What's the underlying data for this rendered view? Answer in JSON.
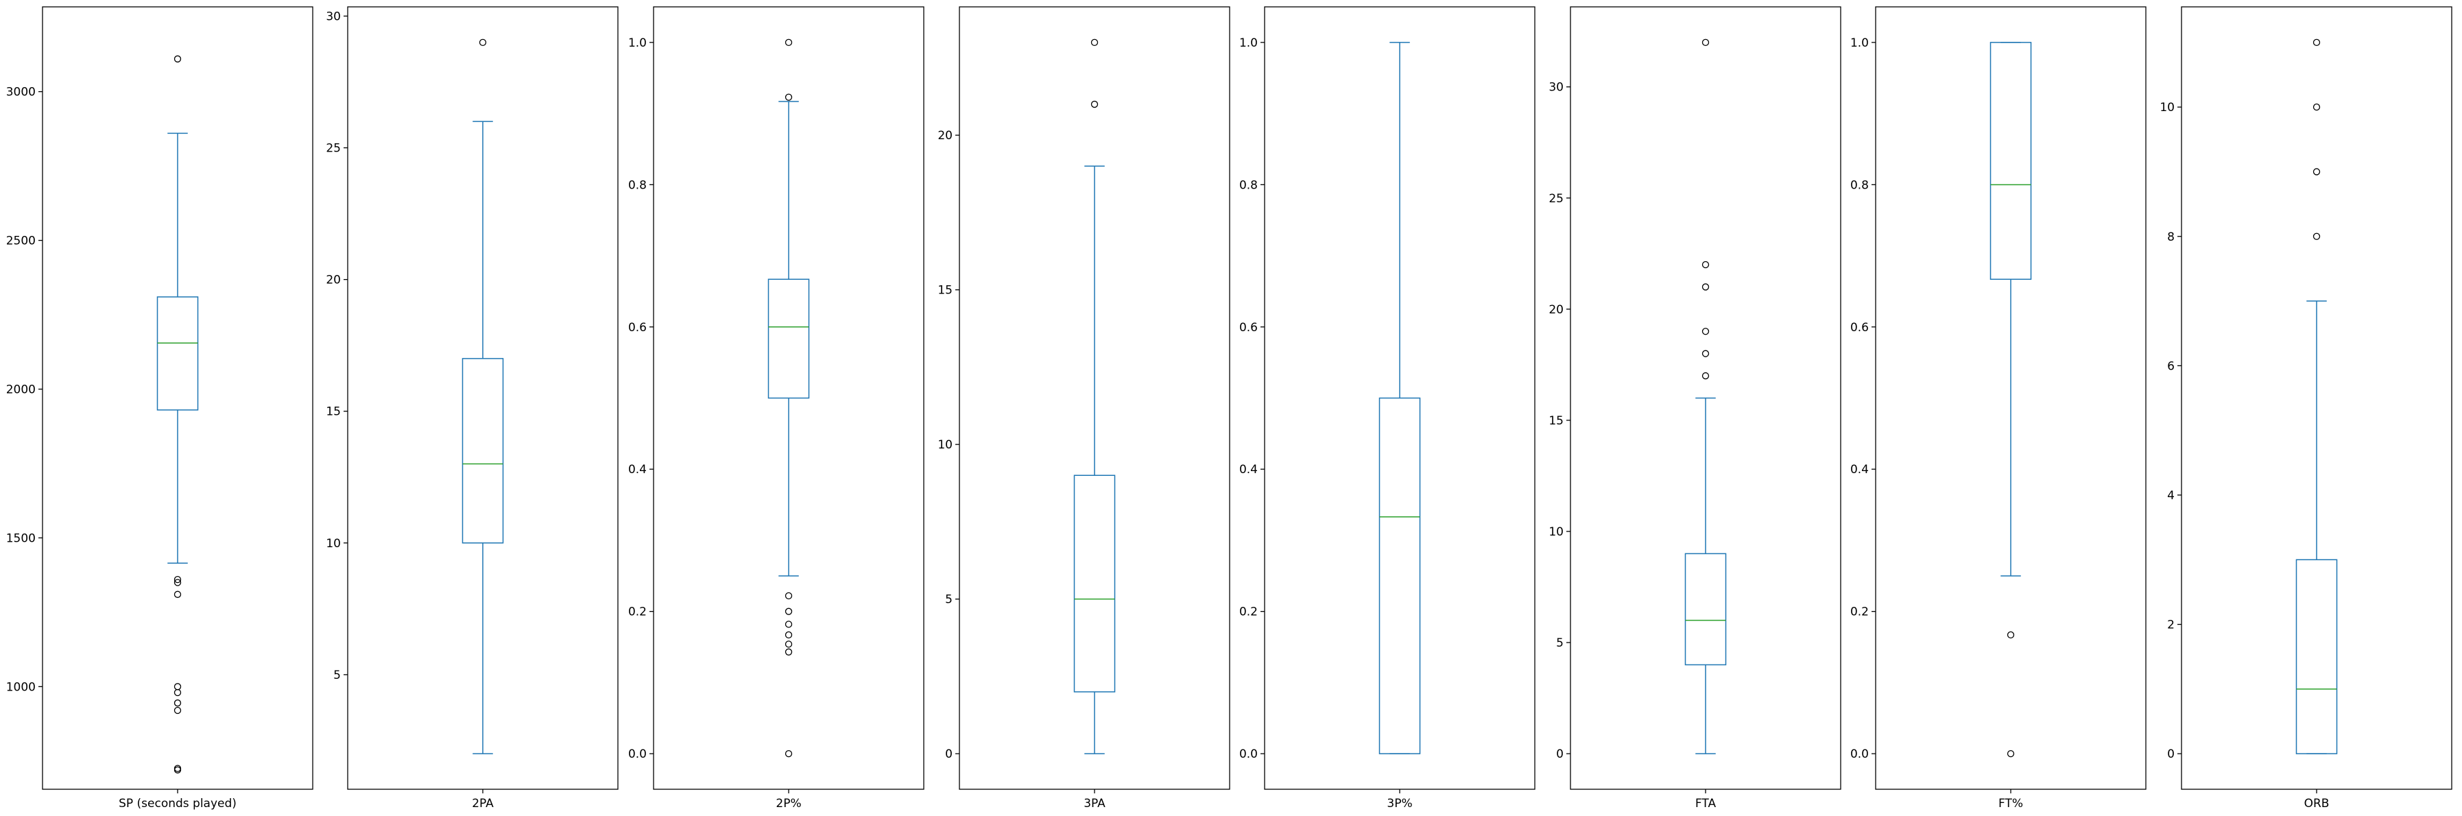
{
  "chart_data": [
    {
      "type": "box",
      "category": "SP (seconds played)",
      "ylim": [
        655,
        3285
      ],
      "yticks": [
        1000,
        1500,
        2000,
        2500,
        3000
      ],
      "ytick_labels": [
        "1000",
        "1500",
        "2000",
        "2500",
        "3000"
      ],
      "whisker_low": 1415,
      "q1": 1930,
      "median": 2155,
      "q3": 2310,
      "whisker_high": 2860,
      "outliers": [
        720,
        725,
        920,
        945,
        980,
        1000,
        1310,
        1350,
        1360,
        3110
      ]
    },
    {
      "type": "box",
      "category": "2PA",
      "ylim": [
        0.65,
        30.35
      ],
      "yticks": [
        5,
        10,
        15,
        20,
        25,
        30
      ],
      "ytick_labels": [
        "5",
        "10",
        "15",
        "20",
        "25",
        "30"
      ],
      "whisker_low": 2,
      "q1": 10,
      "median": 13,
      "q3": 17,
      "whisker_high": 26,
      "outliers": [
        29
      ]
    },
    {
      "type": "box",
      "category": "2P%",
      "ylim": [
        -0.05,
        1.05
      ],
      "yticks": [
        0.0,
        0.2,
        0.4,
        0.6,
        0.8,
        1.0
      ],
      "ytick_labels": [
        "0.0",
        "0.2",
        "0.4",
        "0.6",
        "0.8",
        "1.0"
      ],
      "whisker_low": 0.25,
      "q1": 0.5,
      "median": 0.6,
      "q3": 0.667,
      "whisker_high": 0.917,
      "outliers": [
        0.0,
        0.143,
        0.154,
        0.167,
        0.182,
        0.2,
        0.222,
        0.923,
        1.0
      ]
    },
    {
      "type": "box",
      "category": "3PA",
      "ylim": [
        -1.15,
        24.15
      ],
      "yticks": [
        0,
        5,
        10,
        15,
        20
      ],
      "ytick_labels": [
        "0",
        "5",
        "10",
        "15",
        "20"
      ],
      "whisker_low": 0,
      "q1": 2,
      "median": 5,
      "q3": 9,
      "whisker_high": 19,
      "outliers": [
        21,
        23
      ]
    },
    {
      "type": "box",
      "category": "3P%",
      "ylim": [
        -0.05,
        1.05
      ],
      "yticks": [
        0.0,
        0.2,
        0.4,
        0.6,
        0.8,
        1.0
      ],
      "ytick_labels": [
        "0.0",
        "0.2",
        "0.4",
        "0.6",
        "0.8",
        "1.0"
      ],
      "whisker_low": 0.0,
      "q1": 0.0,
      "median": 0.333,
      "q3": 0.5,
      "whisker_high": 1.0,
      "outliers": []
    },
    {
      "type": "box",
      "category": "FTA",
      "ylim": [
        -1.6,
        33.6
      ],
      "yticks": [
        0,
        5,
        10,
        15,
        20,
        25,
        30
      ],
      "ytick_labels": [
        "0",
        "5",
        "10",
        "15",
        "20",
        "25",
        "30"
      ],
      "whisker_low": 0,
      "q1": 4,
      "median": 6,
      "q3": 9,
      "whisker_high": 16,
      "outliers": [
        17,
        18,
        19,
        21,
        22,
        32
      ]
    },
    {
      "type": "box",
      "category": "FT%",
      "ylim": [
        -0.05,
        1.05
      ],
      "yticks": [
        0.0,
        0.2,
        0.4,
        0.6,
        0.8,
        1.0
      ],
      "ytick_labels": [
        "0.0",
        "0.2",
        "0.4",
        "0.6",
        "0.8",
        "1.0"
      ],
      "whisker_low": 0.25,
      "q1": 0.667,
      "median": 0.8,
      "q3": 1.0,
      "whisker_high": 1.0,
      "outliers": [
        0.0,
        0.167
      ]
    },
    {
      "type": "box",
      "category": "ORB",
      "ylim": [
        -0.55,
        11.55
      ],
      "yticks": [
        0,
        2,
        4,
        6,
        8,
        10
      ],
      "ytick_labels": [
        "0",
        "2",
        "4",
        "6",
        "8",
        "10"
      ],
      "whisker_low": 0,
      "q1": 0,
      "median": 1,
      "q3": 3,
      "whisker_high": 7,
      "outliers": [
        8,
        9,
        10,
        11
      ]
    }
  ],
  "colors": {
    "box": "#1f77b4",
    "median": "#2ca02c",
    "flier": "#000000",
    "axes": "#000000"
  }
}
